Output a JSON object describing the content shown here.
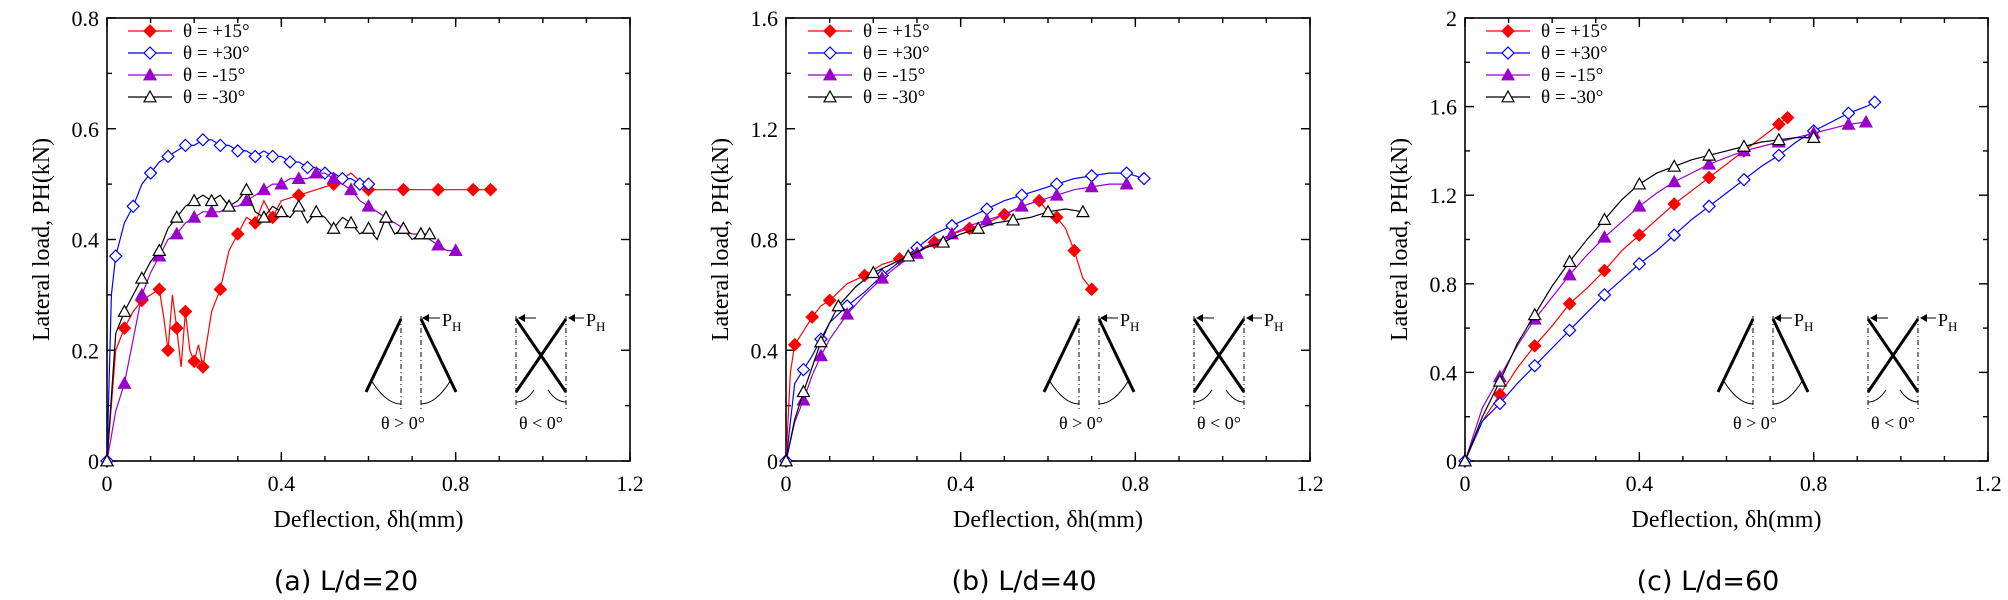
{
  "colors": {
    "s15p": "#ff0000",
    "s30p": "#0000ff",
    "s15m": "#9900cc",
    "s30m": "#000000"
  },
  "inset": {
    "load_label": "P",
    "load_sub": "H",
    "pos_label": "θ > 0°",
    "neg_label": "θ < 0°"
  },
  "chart_data": [
    {
      "type": "line",
      "caption": "(a) L/d=20",
      "xlabel": "Deflection, δh(mm)",
      "ylabel": "Lateral load, PH(kN)",
      "xlim": [
        0,
        1.2
      ],
      "ylim": [
        0,
        0.8
      ],
      "xticks": [
        "0",
        "0.4",
        "0.8",
        "1.2"
      ],
      "yticks": [
        "0",
        "0.2",
        "0.4",
        "0.6",
        "0.8"
      ],
      "legend_position": "top-left",
      "series": [
        {
          "name": "θ = +15°",
          "marker": "diamond-filled",
          "x": [
            0,
            0.02,
            0.04,
            0.06,
            0.08,
            0.1,
            0.12,
            0.13,
            0.14,
            0.15,
            0.16,
            0.17,
            0.18,
            0.19,
            0.2,
            0.21,
            0.22,
            0.24,
            0.26,
            0.28,
            0.3,
            0.32,
            0.34,
            0.36,
            0.38,
            0.4,
            0.44,
            0.48,
            0.52,
            0.56,
            0.6,
            0.64,
            0.68,
            0.72,
            0.76,
            0.8,
            0.84,
            0.88
          ],
          "y": [
            0,
            0.2,
            0.24,
            0.27,
            0.29,
            0.3,
            0.31,
            0.26,
            0.2,
            0.3,
            0.24,
            0.17,
            0.27,
            0.2,
            0.18,
            0.21,
            0.17,
            0.27,
            0.31,
            0.38,
            0.41,
            0.44,
            0.43,
            0.47,
            0.44,
            0.47,
            0.48,
            0.49,
            0.5,
            0.52,
            0.49,
            0.49,
            0.49,
            0.49,
            0.49,
            0.49,
            0.49,
            0.49
          ]
        },
        {
          "name": "θ = +30°",
          "marker": "diamond-open",
          "x": [
            0,
            0.01,
            0.02,
            0.04,
            0.06,
            0.08,
            0.1,
            0.12,
            0.14,
            0.16,
            0.18,
            0.2,
            0.22,
            0.24,
            0.26,
            0.28,
            0.3,
            0.32,
            0.34,
            0.36,
            0.38,
            0.4,
            0.42,
            0.44,
            0.46,
            0.48,
            0.5,
            0.52,
            0.54,
            0.56,
            0.58,
            0.6
          ],
          "y": [
            0,
            0.3,
            0.37,
            0.43,
            0.46,
            0.5,
            0.52,
            0.54,
            0.55,
            0.56,
            0.57,
            0.57,
            0.58,
            0.58,
            0.57,
            0.57,
            0.56,
            0.56,
            0.55,
            0.56,
            0.55,
            0.55,
            0.54,
            0.54,
            0.53,
            0.53,
            0.52,
            0.52,
            0.51,
            0.51,
            0.5,
            0.5
          ]
        },
        {
          "name": "θ = -15°",
          "marker": "triangle-filled",
          "x": [
            0,
            0.02,
            0.04,
            0.06,
            0.08,
            0.1,
            0.12,
            0.14,
            0.16,
            0.18,
            0.2,
            0.22,
            0.24,
            0.26,
            0.28,
            0.3,
            0.32,
            0.34,
            0.36,
            0.38,
            0.4,
            0.42,
            0.44,
            0.46,
            0.48,
            0.5,
            0.52,
            0.54,
            0.56,
            0.58,
            0.6,
            0.62,
            0.64,
            0.66,
            0.68,
            0.7,
            0.72,
            0.74,
            0.76,
            0.78,
            0.8
          ],
          "y": [
            0,
            0.09,
            0.14,
            0.22,
            0.3,
            0.34,
            0.37,
            0.4,
            0.41,
            0.43,
            0.44,
            0.45,
            0.45,
            0.45,
            0.46,
            0.46,
            0.47,
            0.48,
            0.49,
            0.5,
            0.5,
            0.51,
            0.51,
            0.51,
            0.52,
            0.52,
            0.51,
            0.5,
            0.49,
            0.47,
            0.46,
            0.45,
            0.44,
            0.43,
            0.42,
            0.41,
            0.41,
            0.4,
            0.39,
            0.38,
            0.38
          ]
        },
        {
          "name": "θ = -30°",
          "marker": "triangle-open",
          "x": [
            0,
            0.02,
            0.04,
            0.06,
            0.08,
            0.1,
            0.12,
            0.14,
            0.16,
            0.18,
            0.2,
            0.22,
            0.24,
            0.26,
            0.28,
            0.3,
            0.32,
            0.34,
            0.36,
            0.38,
            0.4,
            0.42,
            0.44,
            0.46,
            0.48,
            0.5,
            0.52,
            0.54,
            0.56,
            0.58,
            0.6,
            0.62,
            0.64,
            0.66,
            0.68,
            0.7,
            0.72,
            0.74
          ],
          "y": [
            0,
            0.23,
            0.27,
            0.3,
            0.33,
            0.36,
            0.38,
            0.42,
            0.44,
            0.46,
            0.47,
            0.48,
            0.47,
            0.48,
            0.46,
            0.47,
            0.49,
            0.45,
            0.44,
            0.46,
            0.45,
            0.44,
            0.46,
            0.43,
            0.45,
            0.44,
            0.42,
            0.44,
            0.43,
            0.41,
            0.42,
            0.4,
            0.44,
            0.41,
            0.42,
            0.4,
            0.41,
            0.41
          ]
        }
      ]
    },
    {
      "type": "line",
      "caption": "(b) L/d=40",
      "xlabel": "Deflection, δh(mm)",
      "ylabel": "Lateral load, PH(kN)",
      "xlim": [
        0,
        1.2
      ],
      "ylim": [
        0,
        1.6
      ],
      "xticks": [
        "0",
        "0.4",
        "0.8",
        "1.2"
      ],
      "yticks": [
        "0",
        "0.4",
        "0.8",
        "1.2",
        "1.6"
      ],
      "legend_position": "top-left",
      "series": [
        {
          "name": "θ = +15°",
          "marker": "diamond-filled",
          "x": [
            0,
            0.01,
            0.02,
            0.04,
            0.06,
            0.08,
            0.1,
            0.14,
            0.18,
            0.22,
            0.26,
            0.3,
            0.34,
            0.38,
            0.42,
            0.46,
            0.5,
            0.54,
            0.58,
            0.6,
            0.62,
            0.64,
            0.66,
            0.68,
            0.7
          ],
          "y": [
            0,
            0.32,
            0.42,
            0.47,
            0.52,
            0.56,
            0.58,
            0.64,
            0.67,
            0.71,
            0.73,
            0.76,
            0.79,
            0.82,
            0.84,
            0.86,
            0.89,
            0.92,
            0.94,
            0.9,
            0.88,
            0.84,
            0.76,
            0.66,
            0.62
          ]
        },
        {
          "name": "θ = +30°",
          "marker": "diamond-open",
          "x": [
            0,
            0.02,
            0.04,
            0.06,
            0.08,
            0.1,
            0.14,
            0.18,
            0.22,
            0.26,
            0.3,
            0.34,
            0.38,
            0.42,
            0.46,
            0.5,
            0.54,
            0.58,
            0.62,
            0.66,
            0.7,
            0.74,
            0.78,
            0.82
          ],
          "y": [
            0,
            0.28,
            0.33,
            0.38,
            0.44,
            0.5,
            0.56,
            0.61,
            0.67,
            0.72,
            0.77,
            0.82,
            0.85,
            0.88,
            0.91,
            0.94,
            0.96,
            0.98,
            1.0,
            1.02,
            1.03,
            1.04,
            1.04,
            1.02
          ]
        },
        {
          "name": "θ = -15°",
          "marker": "triangle-filled",
          "x": [
            0,
            0.02,
            0.04,
            0.06,
            0.08,
            0.1,
            0.14,
            0.18,
            0.22,
            0.26,
            0.3,
            0.34,
            0.38,
            0.42,
            0.46,
            0.5,
            0.54,
            0.58,
            0.62,
            0.66,
            0.7,
            0.74,
            0.78
          ],
          "y": [
            0,
            0.14,
            0.22,
            0.31,
            0.38,
            0.44,
            0.53,
            0.6,
            0.66,
            0.71,
            0.75,
            0.79,
            0.82,
            0.85,
            0.87,
            0.89,
            0.92,
            0.94,
            0.96,
            0.98,
            0.99,
            1.0,
            1.0
          ]
        },
        {
          "name": "θ = -30°",
          "marker": "triangle-open",
          "x": [
            0,
            0.02,
            0.04,
            0.06,
            0.08,
            0.1,
            0.12,
            0.16,
            0.2,
            0.24,
            0.28,
            0.32,
            0.36,
            0.4,
            0.44,
            0.48,
            0.52,
            0.56,
            0.6,
            0.64,
            0.68
          ],
          "y": [
            0,
            0.15,
            0.25,
            0.34,
            0.43,
            0.5,
            0.56,
            0.63,
            0.68,
            0.71,
            0.74,
            0.77,
            0.79,
            0.82,
            0.84,
            0.86,
            0.87,
            0.88,
            0.9,
            0.91,
            0.9
          ]
        }
      ]
    },
    {
      "type": "line",
      "caption": "(c) L/d=60",
      "xlabel": "Deflection, δh(mm)",
      "ylabel": "Lateral load, PH(kN)",
      "xlim": [
        0,
        1.2
      ],
      "ylim": [
        0,
        2
      ],
      "xticks": [
        "0",
        "0.4",
        "0.8",
        "1.2"
      ],
      "yticks": [
        "0",
        "0.4",
        "0.8",
        "1.2",
        "1.6",
        "2"
      ],
      "legend_position": "top-left",
      "series": [
        {
          "name": "θ = +15°",
          "marker": "diamond-filled",
          "x": [
            0,
            0.04,
            0.08,
            0.12,
            0.16,
            0.2,
            0.24,
            0.28,
            0.32,
            0.36,
            0.4,
            0.44,
            0.48,
            0.52,
            0.56,
            0.6,
            0.64,
            0.68,
            0.72,
            0.74
          ],
          "y": [
            0,
            0.18,
            0.3,
            0.42,
            0.52,
            0.61,
            0.71,
            0.78,
            0.86,
            0.95,
            1.02,
            1.09,
            1.16,
            1.22,
            1.28,
            1.34,
            1.4,
            1.46,
            1.52,
            1.55
          ]
        },
        {
          "name": "θ = +30°",
          "marker": "diamond-open",
          "x": [
            0,
            0.04,
            0.08,
            0.12,
            0.16,
            0.2,
            0.24,
            0.28,
            0.32,
            0.36,
            0.4,
            0.44,
            0.48,
            0.52,
            0.56,
            0.6,
            0.64,
            0.68,
            0.72,
            0.76,
            0.8,
            0.84,
            0.88,
            0.92,
            0.94
          ],
          "y": [
            0,
            0.18,
            0.26,
            0.35,
            0.43,
            0.51,
            0.59,
            0.67,
            0.75,
            0.82,
            0.89,
            0.95,
            1.02,
            1.09,
            1.15,
            1.21,
            1.27,
            1.33,
            1.38,
            1.44,
            1.49,
            1.53,
            1.57,
            1.6,
            1.62
          ]
        },
        {
          "name": "θ = -15°",
          "marker": "triangle-filled",
          "x": [
            0,
            0.04,
            0.08,
            0.12,
            0.16,
            0.2,
            0.24,
            0.28,
            0.32,
            0.36,
            0.4,
            0.44,
            0.48,
            0.52,
            0.56,
            0.6,
            0.64,
            0.68,
            0.72,
            0.76,
            0.8,
            0.84,
            0.88,
            0.92
          ],
          "y": [
            0,
            0.24,
            0.38,
            0.52,
            0.64,
            0.74,
            0.84,
            0.93,
            1.01,
            1.08,
            1.15,
            1.21,
            1.26,
            1.3,
            1.34,
            1.37,
            1.4,
            1.42,
            1.44,
            1.46,
            1.48,
            1.5,
            1.52,
            1.53
          ]
        },
        {
          "name": "θ = -30°",
          "marker": "triangle-open",
          "x": [
            0,
            0.04,
            0.08,
            0.12,
            0.16,
            0.2,
            0.24,
            0.28,
            0.32,
            0.36,
            0.4,
            0.44,
            0.48,
            0.52,
            0.56,
            0.6,
            0.64,
            0.68,
            0.72,
            0.76,
            0.8
          ],
          "y": [
            0,
            0.2,
            0.36,
            0.53,
            0.66,
            0.79,
            0.9,
            1.0,
            1.09,
            1.18,
            1.25,
            1.3,
            1.33,
            1.36,
            1.38,
            1.4,
            1.42,
            1.44,
            1.45,
            1.46,
            1.46
          ]
        }
      ]
    }
  ]
}
